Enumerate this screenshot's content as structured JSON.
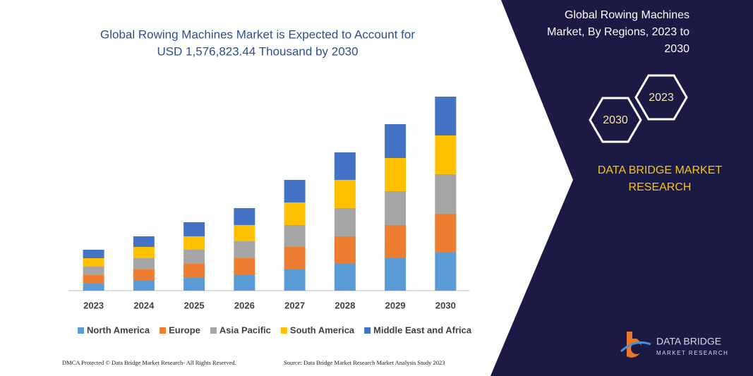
{
  "chart_data": {
    "type": "stacked-bar",
    "title": [
      "Global Rowing Machines Market is Expected to Account for",
      "USD 1,576,823.44 Thousand by 2030"
    ],
    "categories": [
      "2023",
      "2024",
      "2025",
      "2026",
      "2027",
      "2028",
      "2029",
      "2030"
    ],
    "series": [
      {
        "name": "North America",
        "color": "#5b9bd5",
        "values": [
          10,
          14,
          18,
          22,
          30,
          38,
          46,
          54
        ]
      },
      {
        "name": "Europe",
        "color": "#ed7d31",
        "values": [
          12,
          16,
          20,
          24,
          32,
          39,
          47,
          55
        ]
      },
      {
        "name": "Asia Pacific",
        "color": "#a5a5a5",
        "values": [
          12,
          16,
          20,
          24,
          31,
          40,
          48,
          56
        ]
      },
      {
        "name": "South America",
        "color": "#ffc000",
        "values": [
          12,
          16,
          19,
          23,
          32,
          40,
          47,
          55
        ]
      },
      {
        "name": "Middle East and Africa",
        "color": "#4472c4",
        "values": [
          12,
          15,
          20,
          24,
          32,
          39,
          48,
          55
        ]
      }
    ]
  },
  "side_panel": {
    "title": [
      "Global Rowing Machines",
      "Market, By Regions, 2023 to",
      "2030"
    ],
    "hex_labels": [
      "2023",
      "2030"
    ],
    "brand": [
      "DATA BRIDGE MARKET",
      "RESEARCH"
    ]
  },
  "logo": [
    "DATA BRIDGE",
    "MARKET RESEARCH"
  ],
  "footer": {
    "left": "DMCA Protected © Data Bridge Market Research- All Rights Reserved.",
    "right": "Source: Data Bridge Market Research  Market Analysis Study 2023"
  }
}
